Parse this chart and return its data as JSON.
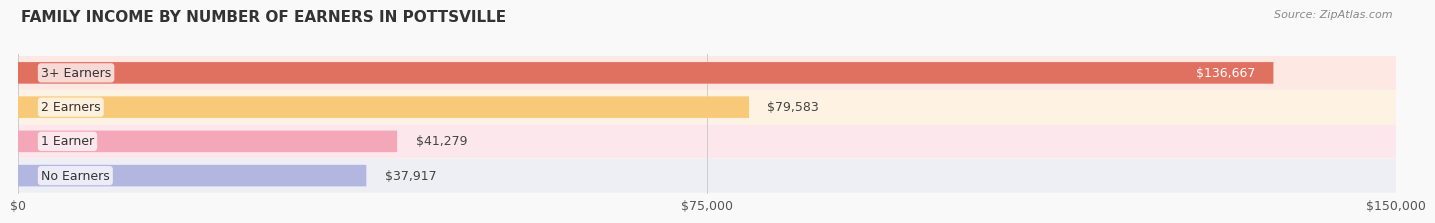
{
  "title": "FAMILY INCOME BY NUMBER OF EARNERS IN POTTSVILLE",
  "source": "Source: ZipAtlas.com",
  "categories": [
    "No Earners",
    "1 Earner",
    "2 Earners",
    "3+ Earners"
  ],
  "values": [
    37917,
    41279,
    79583,
    136667
  ],
  "labels": [
    "$37,917",
    "$41,279",
    "$79,583",
    "$136,667"
  ],
  "bar_colors": [
    "#b3b7e0",
    "#f4a7b9",
    "#f9c97a",
    "#e07060"
  ],
  "row_bg_colors": [
    "#eeeef5",
    "#fce8ec",
    "#fef3e2",
    "#fde8e4"
  ],
  "xlim": [
    0,
    150000
  ],
  "xticks": [
    0,
    75000,
    150000
  ],
  "xticklabels": [
    "$0",
    "$75,000",
    "$150,000"
  ],
  "title_fontsize": 11,
  "source_fontsize": 8,
  "label_fontsize": 9,
  "tick_fontsize": 9,
  "background_color": "#f9f9f9",
  "title_color": "#333333",
  "source_color": "#888888"
}
